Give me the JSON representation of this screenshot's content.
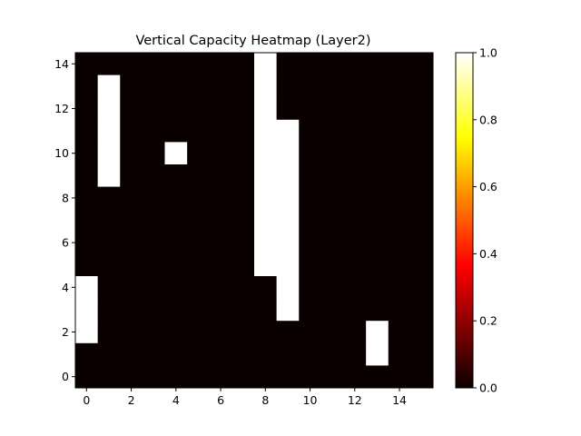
{
  "chart_data": {
    "type": "heatmap",
    "title": "Vertical Capacity Heatmap (Layer2)",
    "xlabel": "",
    "ylabel": "",
    "xlim": [
      -0.5,
      15.5
    ],
    "ylim": [
      -0.5,
      14.5
    ],
    "x_ticks": [
      0,
      2,
      4,
      6,
      8,
      10,
      12,
      14
    ],
    "y_ticks": [
      0,
      2,
      4,
      6,
      8,
      10,
      12,
      14
    ],
    "colormap": "hot",
    "colorbar": {
      "range": [
        0.0,
        1.0
      ],
      "ticks": [
        "0.0",
        "0.2",
        "0.4",
        "0.6",
        "0.8",
        "1.0"
      ]
    },
    "rows_top_to_bottom_y": [
      14,
      13,
      12,
      11,
      10,
      9,
      8,
      7,
      6,
      5,
      4,
      3,
      2,
      1,
      0
    ],
    "values": [
      [
        0,
        0,
        0,
        0,
        0,
        0,
        0,
        0,
        1,
        0,
        0,
        0,
        0,
        0,
        0,
        0
      ],
      [
        0,
        1,
        0,
        0,
        0,
        0,
        0,
        0,
        1,
        0,
        0,
        0,
        0,
        0,
        0,
        0
      ],
      [
        0,
        1,
        0,
        0,
        0,
        0,
        0,
        0,
        1,
        0,
        0,
        0,
        0,
        0,
        0,
        0
      ],
      [
        0,
        1,
        0,
        0,
        0,
        0,
        0,
        0,
        1,
        1,
        0,
        0,
        0,
        0,
        0,
        0
      ],
      [
        0,
        1,
        0,
        0,
        1,
        0,
        0,
        0,
        1,
        1,
        0,
        0,
        0,
        0,
        0,
        0
      ],
      [
        0,
        1,
        0,
        0,
        0,
        0,
        0,
        0,
        1,
        1,
        0,
        0,
        0,
        0,
        0,
        0
      ],
      [
        0,
        0,
        0,
        0,
        0,
        0,
        0,
        0,
        1,
        1,
        0,
        0,
        0,
        0,
        0,
        0
      ],
      [
        0,
        0,
        0,
        0,
        0,
        0,
        0,
        0,
        1,
        1,
        0,
        0,
        0,
        0,
        0,
        0
      ],
      [
        0,
        0,
        0,
        0,
        0,
        0,
        0,
        0,
        1,
        1,
        0,
        0,
        0,
        0,
        0,
        0
      ],
      [
        0,
        0,
        0,
        0,
        0,
        0,
        0,
        0,
        1,
        1,
        0,
        0,
        0,
        0,
        0,
        0
      ],
      [
        1,
        0,
        0,
        0,
        0,
        0,
        0,
        0,
        0,
        1,
        0,
        0,
        0,
        0,
        0,
        0
      ],
      [
        1,
        0,
        0,
        0,
        0,
        0,
        0,
        0,
        0,
        1,
        0,
        0,
        0,
        0,
        0,
        0
      ],
      [
        1,
        0,
        0,
        0,
        0,
        0,
        0,
        0,
        0,
        0,
        0,
        0,
        0,
        1,
        0,
        0
      ],
      [
        0,
        0,
        0,
        0,
        0,
        0,
        0,
        0,
        0,
        0,
        0,
        0,
        0,
        1,
        0,
        0
      ],
      [
        0,
        0,
        0,
        0,
        0,
        0,
        0,
        0,
        0,
        0,
        0,
        0,
        0,
        0,
        0,
        0
      ]
    ]
  }
}
